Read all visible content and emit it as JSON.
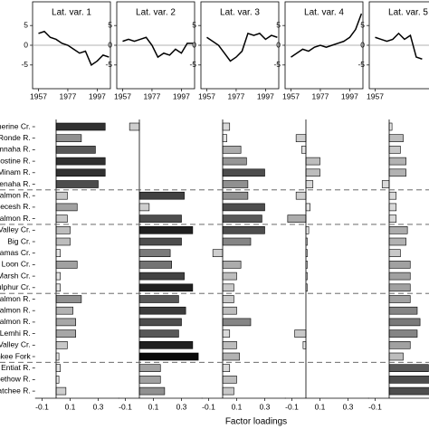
{
  "chart_data": [
    {
      "type": "line",
      "title": "Lat. var. 1",
      "x": [
        1957,
        1961,
        1965,
        1969,
        1973,
        1977,
        1981,
        1985,
        1989,
        1993,
        1997,
        2001,
        2005
      ],
      "values": [
        3,
        3.5,
        2,
        1.5,
        0.5,
        0,
        -1,
        -2,
        -1.5,
        -5,
        -4,
        -2.5,
        -3
      ],
      "color": "#000000",
      "xlim": [
        1953,
        2006
      ],
      "ylim": [
        -11,
        11
      ],
      "xticks": [
        1957,
        1977,
        1997
      ],
      "yticks": [
        -5,
        0,
        5
      ]
    },
    {
      "type": "line",
      "title": "Lat. var. 2",
      "x": [
        1957,
        1961,
        1965,
        1969,
        1973,
        1977,
        1981,
        1985,
        1989,
        1993,
        1997,
        2001,
        2005
      ],
      "values": [
        1,
        1.5,
        1,
        1.5,
        2,
        0,
        -3,
        -2,
        -2.5,
        -1,
        -2,
        0.5,
        0.5
      ],
      "color": "#000000",
      "xlim": [
        1953,
        2006
      ],
      "ylim": [
        -11,
        11
      ],
      "xticks": [
        1957,
        1977,
        1997
      ],
      "yticks": [
        -5,
        0,
        5
      ]
    },
    {
      "type": "line",
      "title": "Lat. var. 3",
      "x": [
        1957,
        1961,
        1965,
        1969,
        1973,
        1977,
        1981,
        1985,
        1989,
        1993,
        1997,
        2001,
        2005
      ],
      "values": [
        2,
        1,
        0,
        -2,
        -4,
        -3,
        -1.5,
        3,
        2.5,
        3,
        1.5,
        2.5,
        2
      ],
      "color": "#000000",
      "xlim": [
        1953,
        2006
      ],
      "ylim": [
        -11,
        11
      ],
      "xticks": [
        1957,
        1977,
        1997
      ],
      "yticks": [
        -5,
        0,
        5
      ]
    },
    {
      "type": "line",
      "title": "Lat. var. 4",
      "x": [
        1957,
        1961,
        1965,
        1969,
        1973,
        1977,
        1981,
        1985,
        1989,
        1993,
        1997,
        2001,
        2005
      ],
      "values": [
        -3,
        -2,
        -1,
        -1.5,
        -0.5,
        0,
        -0.5,
        0,
        0.5,
        1,
        2,
        4,
        8
      ],
      "color": "#000000",
      "xlim": [
        1953,
        2006
      ],
      "ylim": [
        -11,
        11
      ],
      "xticks": [
        1957,
        1977,
        1997
      ],
      "yticks": [
        -5,
        0,
        5
      ]
    },
    {
      "type": "line",
      "title": "Lat. var. 5",
      "x": [
        1957,
        1961,
        1965,
        1969,
        1973,
        1977,
        1981,
        1985,
        1989
      ],
      "values": [
        2,
        1.5,
        1,
        1.5,
        3,
        1.5,
        2.5,
        -3,
        -3.5
      ],
      "color": "#000000",
      "xlim": [
        1953,
        2006
      ],
      "ylim": [
        -11,
        11
      ],
      "xticks": [
        1957
      ],
      "yticks": [
        -5,
        0,
        5
      ]
    },
    {
      "type": "barh",
      "categories": [
        "Catherine Cr.",
        "G.Ronde R.",
        "Imnaha R.",
        "Lostine R.",
        "Minam R.",
        "Wenaha R.",
        "F Salmon R.",
        "Secesh R.",
        "F Salmon R.",
        "ar Valley Cr.",
        "Big Cr.",
        "Camas Cr.",
        "Loon Cr.",
        "Marsh Cr.",
        "Sulphur Cr.",
        "w. Salmon R.",
        "p. Salmon R.",
        "F Salmon R.",
        "Lemhi R.",
        "Valley Cr.",
        "Yankee Fork",
        "Entiat R.",
        "Methow R.",
        "enatchee R."
      ],
      "values": [
        0.35,
        0.18,
        0.28,
        0.35,
        0.35,
        0.3,
        0.08,
        0.15,
        0.08,
        0.1,
        0.1,
        0.03,
        0.15,
        0.03,
        0.03,
        0.18,
        0.12,
        0.14,
        0.14,
        0.08,
        0.02,
        0.03,
        0.02,
        0.07
      ],
      "xlim": [
        -0.15,
        0.45
      ],
      "xticks": [
        -0.1,
        0.1,
        0.3
      ]
    },
    {
      "type": "barh",
      "values": [
        -0.07,
        0,
        0,
        0,
        0,
        0,
        0.32,
        0.07,
        0.3,
        0.38,
        0.3,
        0.22,
        0.23,
        0.32,
        0.38,
        0.28,
        0.33,
        0.3,
        0.28,
        0.38,
        0.42,
        0.15,
        0.15,
        0.18
      ],
      "xlim": [
        -0.15,
        0.45
      ],
      "xticks": [
        -0.1,
        0.1,
        0.3
      ]
    },
    {
      "type": "barh",
      "values": [
        0.05,
        0.03,
        0.13,
        0.17,
        0.3,
        0.18,
        0.18,
        0.3,
        0.28,
        0.3,
        0.2,
        -0.07,
        0.13,
        0.1,
        0.08,
        0.08,
        0.1,
        0.2,
        0.05,
        0.1,
        0.12,
        0.05,
        0.1,
        0.08
      ],
      "xlim": [
        -0.15,
        0.45
      ],
      "xticks": [
        -0.1,
        0.1,
        0.3
      ],
      "xlabel": "Factor loadings"
    },
    {
      "type": "barh",
      "values": [
        0,
        -0.07,
        -0.03,
        0.1,
        0.1,
        0.05,
        -0.07,
        0.03,
        -0.13,
        0.02,
        0.01,
        0.01,
        0.01,
        0.01,
        0.01,
        0,
        0,
        0,
        -0.08,
        -0.02,
        0,
        0,
        0,
        0
      ],
      "xlim": [
        -0.15,
        0.45
      ],
      "xticks": [
        -0.1,
        0.1,
        0.3
      ]
    },
    {
      "type": "barh",
      "values": [
        0.02,
        0.1,
        0.08,
        0.12,
        0.12,
        -0.05,
        0.05,
        0.05,
        0.05,
        0.13,
        0.12,
        0.08,
        0.15,
        0.15,
        0.15,
        0.15,
        0.2,
        0.22,
        0.2,
        0.15,
        0.1,
        0.28,
        0.3,
        0.3
      ],
      "xlim": [
        -0.15,
        0.45
      ],
      "xticks": [
        -0.1
      ]
    }
  ]
}
